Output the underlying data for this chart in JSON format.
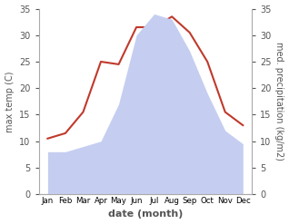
{
  "months": [
    "Jan",
    "Feb",
    "Mar",
    "Apr",
    "May",
    "Jun",
    "Jul",
    "Aug",
    "Sep",
    "Oct",
    "Nov",
    "Dec"
  ],
  "temp": [
    10.5,
    11.5,
    15.5,
    25.0,
    24.5,
    31.5,
    31.5,
    33.5,
    30.5,
    25.0,
    15.5,
    13.0
  ],
  "precip": [
    8.0,
    8.0,
    9.0,
    10.0,
    17.0,
    30.0,
    34.0,
    33.0,
    27.0,
    19.0,
    12.0,
    9.5
  ],
  "temp_color": "#c0392b",
  "precip_fill_color": "#c5cef0",
  "precip_edge_color": "#c5cef0",
  "ylim": [
    0,
    35
  ],
  "yticks": [
    0,
    5,
    10,
    15,
    20,
    25,
    30,
    35
  ],
  "xlabel": "date (month)",
  "ylabel_left": "max temp (C)",
  "ylabel_right": "med. precipitation (kg/m2)",
  "spine_color": "#aaaaaa",
  "tick_color": "#555555",
  "background_color": "#ffffff"
}
